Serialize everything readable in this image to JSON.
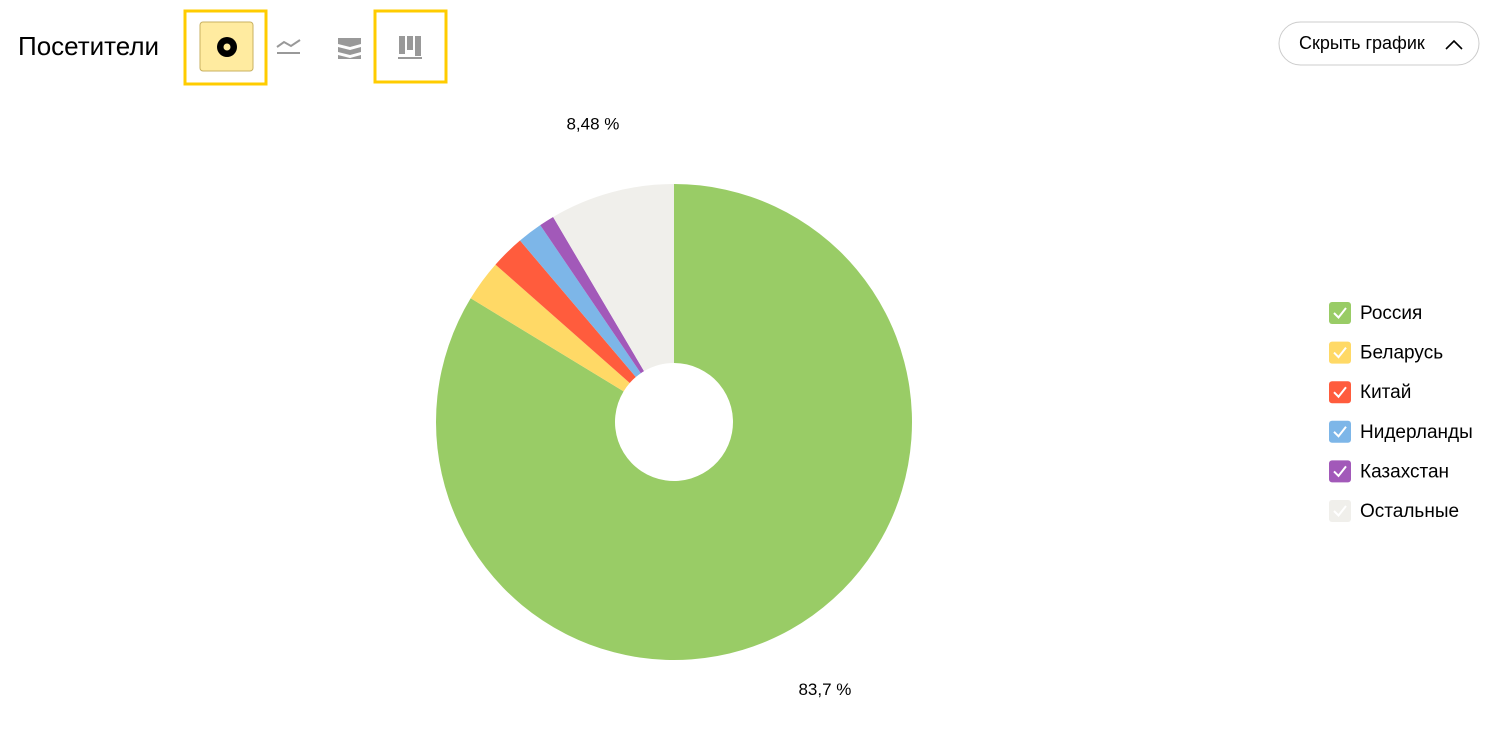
{
  "header": {
    "title": "Посетители",
    "button": "Скрыть график"
  },
  "chart_data": {
    "type": "pie",
    "categories": [
      "Россия",
      "Беларусь",
      "Китай",
      "Нидерланды",
      "Казахстан",
      "Остальные"
    ],
    "values": [
      83.7,
      2.8,
      2.3,
      1.7,
      1.02,
      8.48
    ],
    "value_labels": [
      "83,7 %",
      null,
      null,
      null,
      null,
      "8,48 %"
    ],
    "colors": [
      "#99cc66",
      "#ffd966",
      "#ff5c3d",
      "#7db6e8",
      "#a259b9",
      "#f0efeb"
    ],
    "legend": "right"
  }
}
